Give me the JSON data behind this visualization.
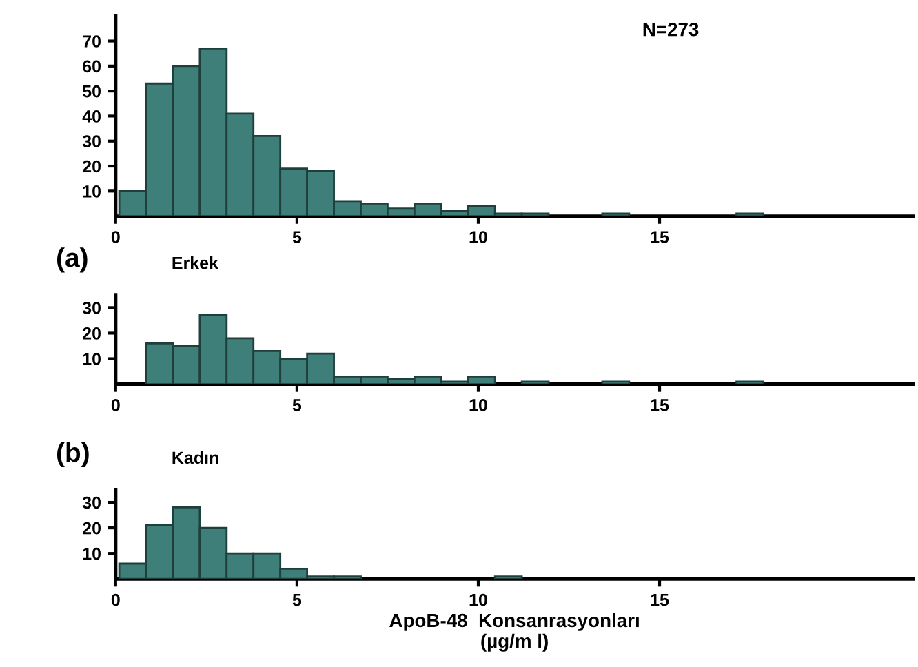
{
  "chart_data": [
    {
      "type": "histogram",
      "bins": [
        0.1,
        0.84,
        1.58,
        2.32,
        3.06,
        3.8,
        4.54,
        5.28,
        6.02,
        6.76,
        7.5,
        8.24,
        8.98,
        9.72,
        10.46,
        11.2,
        11.94,
        12.68,
        13.42,
        14.16,
        14.9,
        15.64,
        16.38,
        17.12,
        17.86
      ],
      "values": [
        10,
        53,
        60,
        67,
        41,
        32,
        19,
        18,
        6,
        5,
        3,
        5,
        2,
        4,
        1,
        1,
        0,
        0,
        1,
        0,
        0,
        0,
        0,
        1
      ],
      "color": "#3f7f7a",
      "xlim": [
        0,
        22
      ],
      "xticks": [
        0,
        5,
        10,
        15
      ],
      "ylim": [
        0,
        80
      ],
      "yticks": [
        10,
        20,
        30,
        40,
        50,
        60,
        70
      ],
      "grid": false,
      "annotations": [
        "N=273"
      ]
    },
    {
      "type": "histogram",
      "title": "(a)",
      "subtitle": "Erkek",
      "bins": [
        0.1,
        0.84,
        1.58,
        2.32,
        3.06,
        3.8,
        4.54,
        5.28,
        6.02,
        6.76,
        7.5,
        8.24,
        8.98,
        9.72,
        10.46,
        11.2,
        11.94,
        12.68,
        13.42,
        14.16,
        14.9,
        15.64,
        16.38,
        17.12,
        17.86
      ],
      "values": [
        0,
        16,
        15,
        27,
        18,
        13,
        10,
        12,
        3,
        3,
        2,
        3,
        1,
        3,
        0,
        1,
        0,
        0,
        1,
        0,
        0,
        0,
        0,
        1
      ],
      "color": "#3f7f7a",
      "xlim": [
        0,
        22
      ],
      "xticks": [
        0,
        5,
        10,
        15
      ],
      "ylim": [
        0,
        35
      ],
      "yticks": [
        10,
        20,
        30
      ],
      "grid": false
    },
    {
      "type": "histogram",
      "title": "(b)",
      "subtitle": "Kadın",
      "xlabel": "ApoB-48  Konsanrasyonları\n(µg/m l)",
      "bins": [
        0.1,
        0.84,
        1.58,
        2.32,
        3.06,
        3.8,
        4.54,
        5.28,
        6.02,
        6.76,
        7.5,
        8.24,
        8.98,
        9.72,
        10.46,
        11.2,
        11.94,
        12.68,
        13.42,
        14.16,
        14.9,
        15.64,
        16.38,
        17.12,
        17.86
      ],
      "values": [
        6,
        21,
        28,
        20,
        10,
        10,
        4,
        1,
        1,
        0,
        0,
        0,
        0,
        0,
        1,
        0,
        0,
        0,
        0,
        0,
        0,
        0,
        0,
        0
      ],
      "color": "#3f7f7a",
      "xlim": [
        0,
        22
      ],
      "xticks": [
        0,
        5,
        10,
        15
      ],
      "ylim": [
        0,
        35
      ],
      "yticks": [
        10,
        20,
        30
      ],
      "grid": false
    }
  ]
}
